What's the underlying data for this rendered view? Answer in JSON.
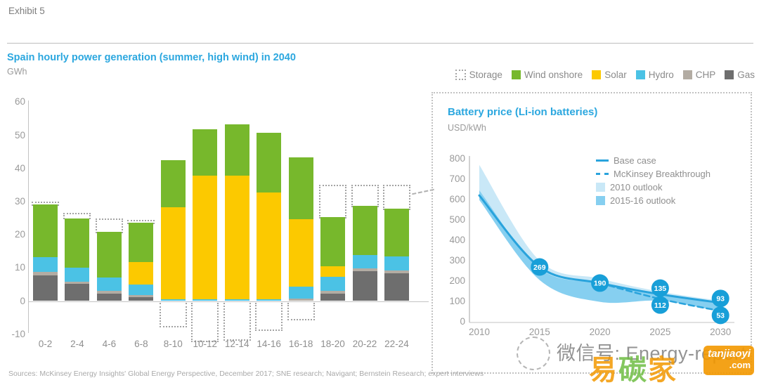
{
  "header": {
    "exhibit": "Exhibit 5",
    "sources": "Sources: McKinsey Energy Insights' Global Energy Perspective, December 2017; SNE research; Navigant; Bernstein Research; expert interviews"
  },
  "colors": {
    "accent_blue": "#2BA7DF",
    "line_blue": "#29A3DC",
    "band_2010_outlook": "#C9E8F7",
    "band_2015_outlook": "#86CFF0",
    "point_circle": "#189FD8",
    "wind": "#77B82C",
    "solar": "#FCC900",
    "hydro": "#4BC2E5",
    "chp": "#B3ACA3",
    "gas": "#6E6E6E",
    "storage_outline": "#A3A3A3"
  },
  "top_legend": {
    "items": [
      {
        "label": "Storage",
        "type": "dotted",
        "color": "#A3A3A3"
      },
      {
        "label": "Wind onshore",
        "type": "box",
        "color": "#77B82C"
      },
      {
        "label": "Solar",
        "type": "box",
        "color": "#FCC900"
      },
      {
        "label": "Hydro",
        "type": "box",
        "color": "#4BC2E5"
      },
      {
        "label": "CHP",
        "type": "box",
        "color": "#B3ACA3"
      },
      {
        "label": "Gas",
        "type": "box",
        "color": "#6E6E6E"
      }
    ]
  },
  "right_panel": {
    "title": "Battery price (Li-ion batteries)",
    "unit": "USD/kWh",
    "legend": [
      {
        "label": "Base case",
        "swatch": "line-solid",
        "color": "#29A3DC"
      },
      {
        "label": "McKinsey Breakthrough",
        "swatch": "line-dashed",
        "color": "#29A3DC"
      },
      {
        "label": "2010 outlook",
        "swatch": "box",
        "color": "#C9E8F7"
      },
      {
        "label": "2015-16 outlook",
        "swatch": "box",
        "color": "#86CFF0"
      }
    ]
  },
  "watermark": {
    "wechat": "微信号: Energy-report",
    "brand_chars": [
      "易",
      "碳",
      "家"
    ],
    "brand_site": "tanjiaoyi",
    "brand_tld": ".com"
  },
  "chart_data": [
    {
      "type": "bar",
      "stacked": true,
      "title": "Spain hourly power generation (summer, high wind) in 2040",
      "ylabel": "GWh",
      "ylim": [
        -10,
        60
      ],
      "yticks": [
        60,
        50,
        40,
        30,
        20,
        10,
        0,
        -10
      ],
      "categories": [
        "0-2",
        "2-4",
        "4-6",
        "6-8",
        "8-10",
        "10-12",
        "12-14",
        "14-16",
        "16-18",
        "18-20",
        "20-22",
        "22-24"
      ],
      "series": [
        {
          "name": "Gas",
          "color": "#6E6E6E",
          "values": [
            7.8,
            5.1,
            2.2,
            1.1,
            0,
            0,
            0,
            0,
            0,
            2.3,
            8.9,
            8.4
          ]
        },
        {
          "name": "CHP",
          "color": "#B3ACA3",
          "values": [
            0.9,
            0.8,
            0.8,
            0.7,
            0,
            0,
            0,
            0,
            0.8,
            0.8,
            0.9,
            0.9
          ]
        },
        {
          "name": "Hydro",
          "color": "#4BC2E5",
          "values": [
            4.6,
            4.1,
            4.2,
            3.2,
            0.6,
            0.6,
            0.6,
            0.6,
            3.6,
            4.2,
            4.1,
            4.1
          ]
        },
        {
          "name": "Solar",
          "color": "#FCC900",
          "values": [
            0,
            0,
            0,
            6.7,
            27.6,
            37.3,
            37.3,
            32.1,
            20.3,
            3.2,
            0,
            0
          ]
        },
        {
          "name": "Wind onshore",
          "color": "#77B82C",
          "values": [
            15.9,
            15.0,
            13.6,
            12.0,
            14.2,
            13.8,
            15.3,
            18.1,
            18.7,
            14.9,
            14.9,
            14.4
          ]
        }
      ],
      "storage": {
        "above_top": [
          30,
          26.5,
          25,
          24.5,
          null,
          null,
          null,
          null,
          null,
          35,
          35,
          35
        ],
        "below_bottom": [
          null,
          null,
          null,
          null,
          -7.5,
          -12,
          -11.5,
          -8.5,
          -5.5,
          null,
          null,
          null
        ]
      }
    },
    {
      "type": "line",
      "title": "Battery price (Li-ion batteries)",
      "ylabel": "USD/kWh",
      "ylim": [
        0,
        800
      ],
      "yticks": [
        800,
        700,
        600,
        500,
        400,
        300,
        200,
        100,
        0
      ],
      "xticks": [
        2010,
        2015,
        2020,
        2025,
        2030
      ],
      "series": [
        {
          "name": "Base case",
          "style": "solid",
          "color": "#29A3DC",
          "x": [
            2010,
            2015,
            2020,
            2025,
            2030
          ],
          "values": [
            620,
            269,
            190,
            135,
            93
          ]
        },
        {
          "name": "McKinsey Breakthrough",
          "style": "dashed",
          "color": "#29A3DC",
          "x": [
            2020,
            2025,
            2030
          ],
          "values": [
            190,
            112,
            53
          ]
        }
      ],
      "bands": [
        {
          "name": "2010 outlook",
          "color": "#C9E8F7",
          "x": [
            2010,
            2015,
            2020,
            2025,
            2030
          ],
          "upper": [
            770,
            300,
            212,
            148,
            103
          ],
          "lower": [
            618,
            238,
            168,
            122,
            85
          ]
        },
        {
          "name": "2015-16 outlook",
          "color": "#86CFF0",
          "x": [
            2010,
            2015,
            2020,
            2025,
            2030
          ],
          "upper": [
            645,
            262,
            188,
            130,
            93
          ],
          "lower": [
            598,
            205,
            98,
            103,
            50
          ]
        }
      ],
      "point_labels": [
        {
          "x": 2015,
          "value": 269,
          "series": "Base case"
        },
        {
          "x": 2020,
          "value": 190,
          "series": "Base case"
        },
        {
          "x": 2025,
          "value": 135,
          "series": "Base case"
        },
        {
          "x": 2025,
          "value": 112,
          "series": "McKinsey Breakthrough"
        },
        {
          "x": 2030,
          "value": 93,
          "series": "Base case"
        },
        {
          "x": 2030,
          "value": 53,
          "series": "McKinsey Breakthrough"
        }
      ]
    }
  ]
}
